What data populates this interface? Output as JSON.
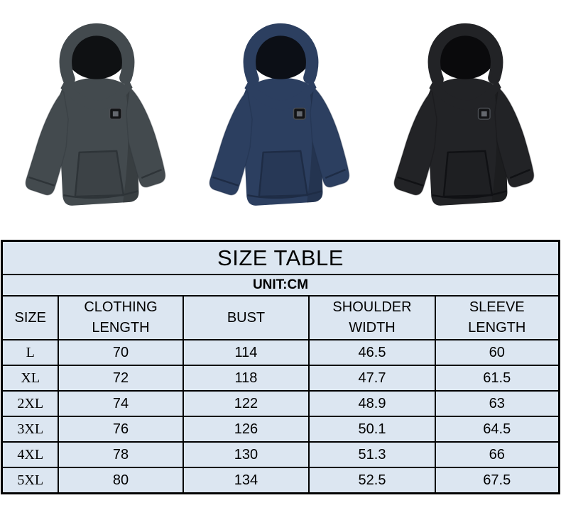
{
  "theme": {
    "page_bg": "#ffffff",
    "table_title_bg": "#ffff00",
    "table_cell_bg": "#dce6f1",
    "table_border": "#000000",
    "text_color": "#000000"
  },
  "products": [
    {
      "name": "hoodie-grey",
      "body_color": "#434a4e",
      "shadow_color": "#2e3438",
      "hood_lining_color": "#0f1113"
    },
    {
      "name": "hoodie-navy",
      "body_color": "#2c3f60",
      "shadow_color": "#1e2c45",
      "hood_lining_color": "#0c0f16"
    },
    {
      "name": "hoodie-black",
      "body_color": "#222326",
      "shadow_color": "#101114",
      "hood_lining_color": "#0a0a0c"
    }
  ],
  "badge": {
    "bg": "#121315",
    "border": "#4a4d52",
    "logo": "#80868c"
  },
  "size_table": {
    "title": "SIZE TABLE",
    "unit_note": "UNIT:CM",
    "columns": [
      "SIZE",
      "CLOTHING LENGTH",
      "BUST",
      "SHOULDER WIDTH",
      "SLEEVE LENGTH"
    ],
    "rows": [
      [
        "L",
        "70",
        "114",
        "46.5",
        "60"
      ],
      [
        "XL",
        "72",
        "118",
        "47.7",
        "61.5"
      ],
      [
        "2XL",
        "74",
        "122",
        "48.9",
        "63"
      ],
      [
        "3XL",
        "76",
        "126",
        "50.1",
        "64.5"
      ],
      [
        "4XL",
        "78",
        "130",
        "51.3",
        "66"
      ],
      [
        "5XL",
        "80",
        "134",
        "52.5",
        "67.5"
      ]
    ]
  }
}
